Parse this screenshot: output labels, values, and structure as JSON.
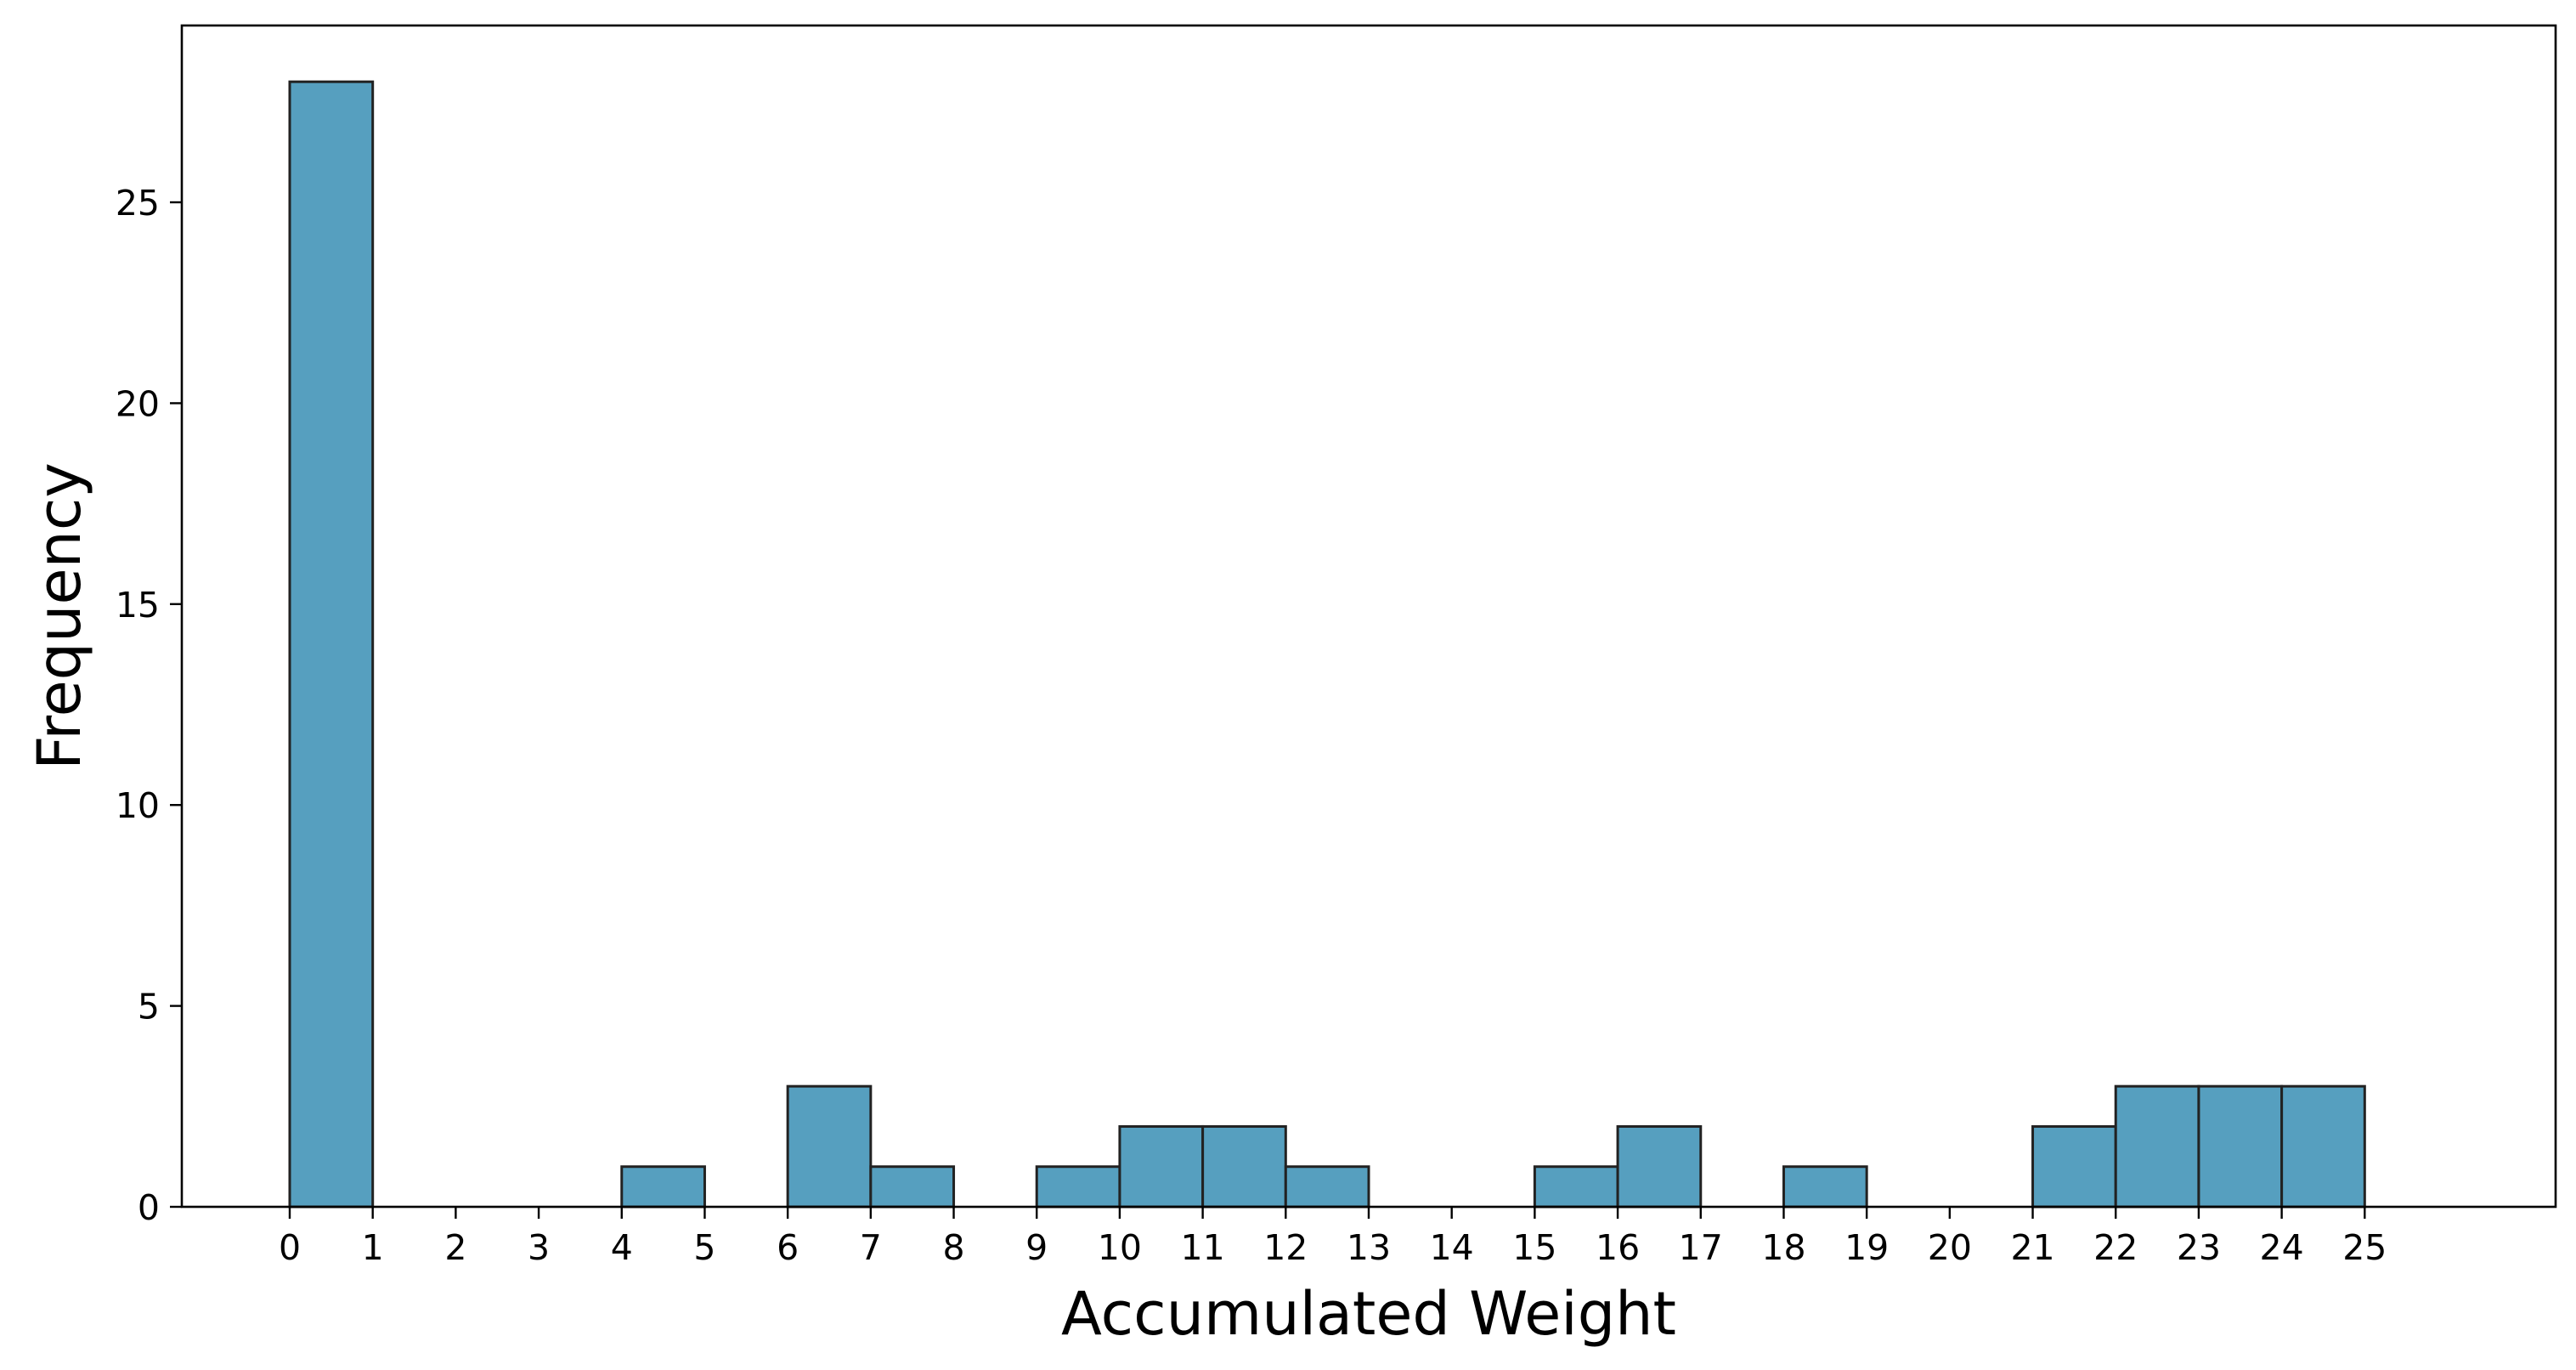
{
  "chart_data": {
    "type": "bar",
    "bin_edges": [
      0,
      1,
      2,
      3,
      4,
      5,
      6,
      7,
      8,
      9,
      10,
      11,
      12,
      13,
      14,
      15,
      16,
      17,
      18,
      19,
      20,
      21,
      22,
      23,
      24,
      25,
      26
    ],
    "values": [
      28,
      0,
      0,
      0,
      1,
      0,
      3,
      1,
      0,
      1,
      2,
      2,
      1,
      0,
      0,
      1,
      2,
      0,
      1,
      0,
      0,
      2,
      3,
      3,
      3,
      0
    ],
    "xticks": [
      0,
      1,
      2,
      3,
      4,
      5,
      6,
      7,
      8,
      9,
      10,
      11,
      12,
      13,
      14,
      15,
      16,
      17,
      18,
      19,
      20,
      21,
      22,
      23,
      24,
      25
    ],
    "yticks": [
      0,
      5,
      10,
      15,
      20,
      25
    ],
    "xlabel": "Accumulated Weight",
    "ylabel": "Frequency",
    "xlim": [
      -1.3,
      27.3
    ],
    "ylim": [
      0,
      29.4
    ],
    "grid": false,
    "bar_color": "#569fbf",
    "edge_color": "#222222"
  }
}
